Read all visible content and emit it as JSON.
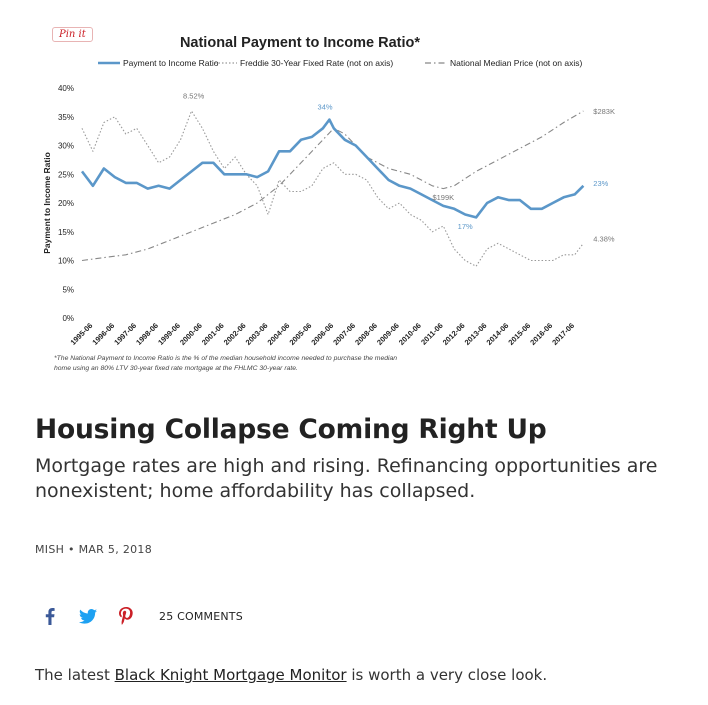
{
  "pin_label": "Pin it",
  "chart_data": {
    "type": "line",
    "title": "National Payment to Income Ratio*",
    "ylabel": "Payment to Income Ratio",
    "xlabel": "",
    "ylim": [
      0,
      40
    ],
    "yticks": [
      "0%",
      "5%",
      "10%",
      "15%",
      "20%",
      "25%",
      "30%",
      "35%",
      "40%"
    ],
    "x_tick_labels": [
      "1995-06",
      "1996-06",
      "1997-06",
      "1998-06",
      "1999-06",
      "2000-06",
      "2001-06",
      "2002-06",
      "2003-06",
      "2004-06",
      "2005-06",
      "2006-06",
      "2007-06",
      "2008-06",
      "2009-06",
      "2010-06",
      "2011-06",
      "2012-06",
      "2013-06",
      "2014-06",
      "2015-06",
      "2016-06",
      "2017-06"
    ],
    "legend_placement": "top",
    "grid": false,
    "series": [
      {
        "name": "Payment to Income Ratio",
        "style": "solid",
        "color": "#5b97c9",
        "x": [
          1995.0,
          1995.5,
          1996.0,
          1996.5,
          1997.0,
          1997.5,
          1998.0,
          1998.5,
          1999.0,
          1999.5,
          2000.0,
          2000.5,
          2001.0,
          2001.5,
          2002.0,
          2002.5,
          2003.0,
          2003.5,
          2004.0,
          2004.5,
          2005.0,
          2005.5,
          2006.0,
          2006.3,
          2006.5,
          2007.0,
          2007.5,
          2008.0,
          2008.5,
          2009.0,
          2009.5,
          2010.0,
          2010.5,
          2011.0,
          2011.5,
          2012.0,
          2012.5,
          2013.0,
          2013.5,
          2014.0,
          2014.5,
          2015.0,
          2015.5,
          2016.0,
          2016.5,
          2017.0,
          2017.5,
          2017.9
        ],
        "values": [
          25.5,
          23,
          26,
          24.5,
          23.5,
          23.5,
          22.5,
          23,
          22.5,
          24,
          25.5,
          27,
          27,
          25,
          25,
          25,
          24.5,
          25.5,
          29,
          29,
          31,
          31.5,
          33,
          34.5,
          33,
          31,
          30,
          28,
          26,
          24,
          23,
          22.5,
          21.5,
          20.5,
          19.5,
          19,
          18,
          17.5,
          20,
          21,
          20.5,
          20.5,
          19,
          19,
          20,
          21,
          21.5,
          23
        ]
      },
      {
        "name": "Freddie 30-Year Fixed Rate (not on axis)",
        "style": "dotted",
        "color": "#999999",
        "x": [
          1995.0,
          1995.5,
          1996.0,
          1996.5,
          1997.0,
          1997.5,
          1998.0,
          1998.5,
          1999.0,
          1999.5,
          2000.0,
          2000.5,
          2001.0,
          2001.5,
          2002.0,
          2002.5,
          2003.0,
          2003.5,
          2004.0,
          2004.5,
          2005.0,
          2005.5,
          2006.0,
          2006.5,
          2007.0,
          2007.5,
          2008.0,
          2008.5,
          2009.0,
          2009.5,
          2010.0,
          2010.5,
          2011.0,
          2011.5,
          2012.0,
          2012.5,
          2013.0,
          2013.5,
          2014.0,
          2014.5,
          2015.0,
          2015.5,
          2016.0,
          2016.5,
          2017.0,
          2017.5,
          2017.9
        ],
        "values": [
          33,
          29,
          34,
          35,
          32,
          33,
          30,
          27,
          28,
          31,
          36,
          33,
          29,
          26,
          28,
          25,
          23,
          18,
          24,
          22,
          22,
          23,
          26,
          27,
          25,
          25,
          24,
          21,
          19,
          20,
          18,
          17,
          15,
          16,
          12,
          10,
          9,
          12,
          13,
          12,
          11,
          10,
          10,
          10,
          11,
          11,
          13
        ]
      },
      {
        "name": "National Median Price (not on axis)",
        "style": "dash-dot",
        "color": "#888888",
        "x": [
          1995.0,
          1996.0,
          1997.0,
          1998.0,
          1999.0,
          2000.0,
          2001.0,
          2002.0,
          2003.0,
          2004.0,
          2005.0,
          2006.0,
          2006.5,
          2007.0,
          2008.0,
          2009.0,
          2010.0,
          2011.0,
          2011.5,
          2012.0,
          2013.0,
          2014.0,
          2015.0,
          2016.0,
          2017.0,
          2017.9
        ],
        "values": [
          10,
          10.5,
          11,
          12,
          13.5,
          15,
          16.5,
          18,
          20,
          23,
          27,
          31,
          33,
          32,
          28,
          26,
          25,
          23,
          22.5,
          23,
          25.5,
          27.5,
          29.5,
          31.5,
          34,
          36
        ]
      }
    ],
    "annotations": [
      {
        "text": "8.52%",
        "x": 2000.1,
        "y": 38.2
      },
      {
        "text": "34%",
        "x": 2006.1,
        "y": 36.3
      },
      {
        "text": "$283K",
        "x": 2018.35,
        "y": 35.5
      },
      {
        "text": "23%",
        "x": 2018.35,
        "y": 23.0
      },
      {
        "text": "$199K",
        "x": 2011.5,
        "y": 20.5
      },
      {
        "text": "17%",
        "x": 2012.5,
        "y": 15.5
      },
      {
        "text": "4.38%",
        "x": 2018.35,
        "y": 13.3
      }
    ],
    "footnote_lines": [
      "*The National Payment to Income Ratio is the % of the median household income needed to purchase the median",
      "home using an 80% LTV 30-year fixed rate mortgage at the FHLMC 30-year rate."
    ]
  },
  "article": {
    "headline": "Housing Collapse Coming Right Up",
    "subhead": "Mortgage rates are high and rising. Refinancing opportunities are nonexistent; home affordability has collapsed.",
    "byline": "MISH • MAR 5, 2018",
    "comments": "25 COMMENTS",
    "body_before_link": "The latest ",
    "body_link": "Black Knight Mortgage Monitor",
    "body_after_link": " is worth a very close look."
  },
  "share_icons": [
    "facebook-icon",
    "twitter-icon",
    "pinterest-icon"
  ],
  "colors": {
    "ratio_line": "#5b97c9",
    "facebook": "#3b5998",
    "twitter": "#1da1f2",
    "pinterest": "#cb2027"
  }
}
